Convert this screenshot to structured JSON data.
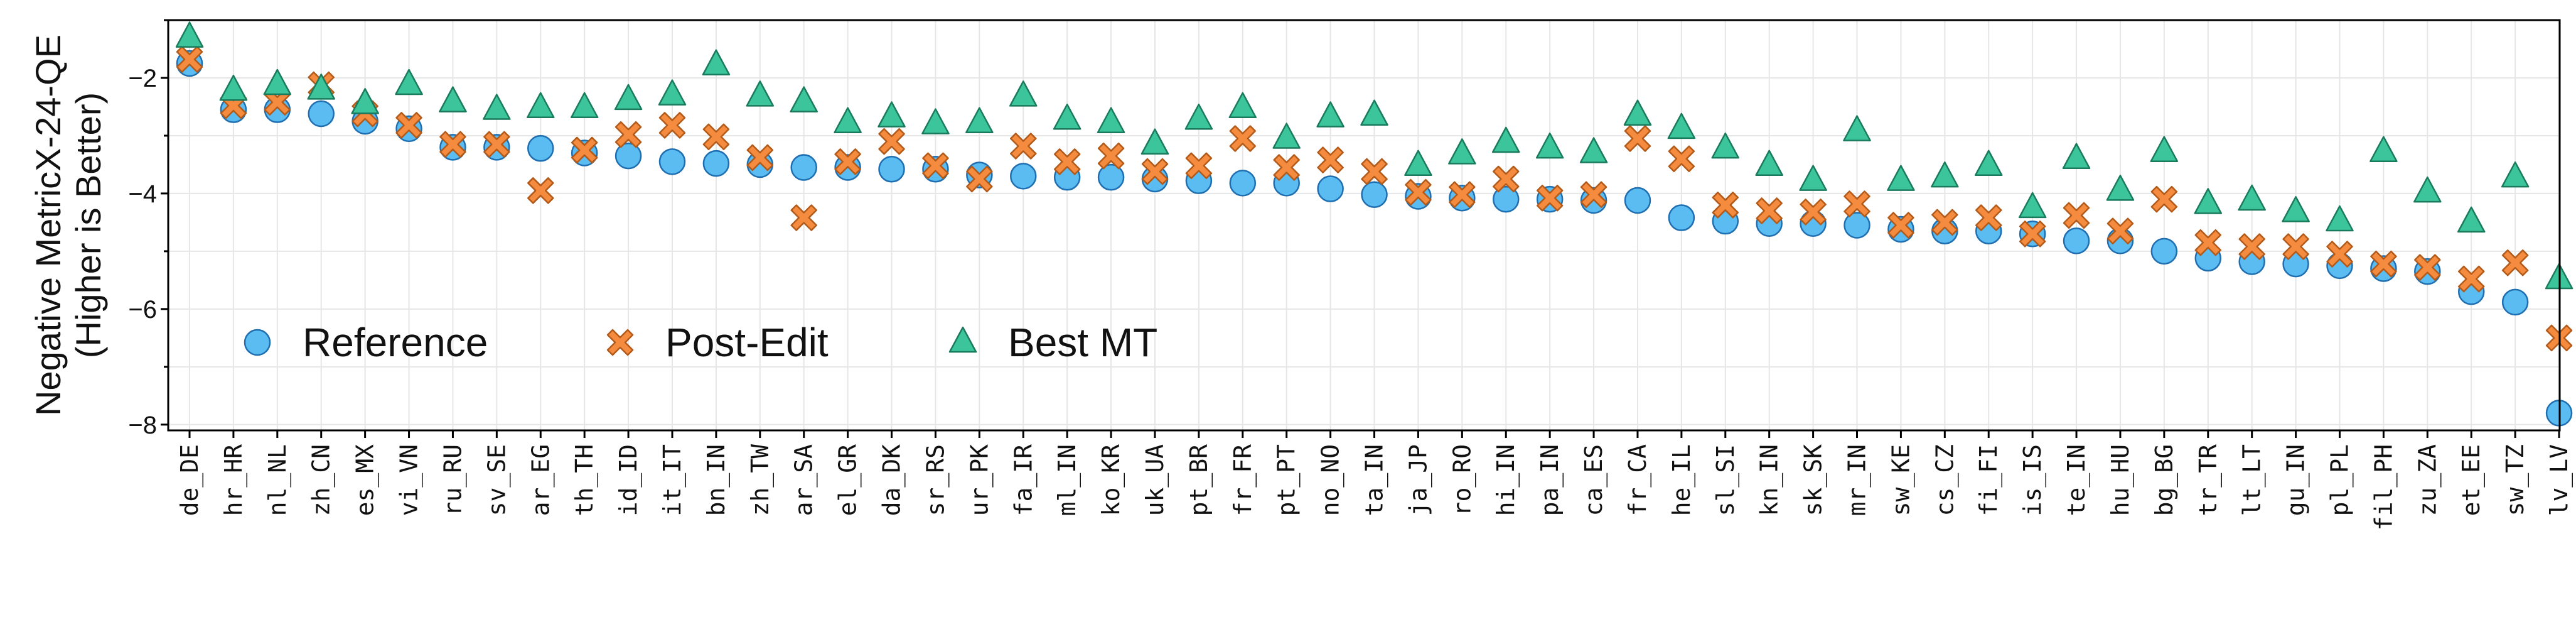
{
  "chart_data": {
    "type": "scatter",
    "ylabel_lines": [
      "Negative MetricX-24-QE",
      "(Higher is Better)"
    ],
    "ylim": [
      -8.1,
      -1.0
    ],
    "yticks": [
      -2,
      -4,
      -6,
      -8
    ],
    "grid": true,
    "legend_position": "lower-left",
    "categories": [
      "de_DE",
      "hr_HR",
      "nl_NL",
      "zh_CN",
      "es_MX",
      "vi_VN",
      "ru_RU",
      "sv_SE",
      "ar_EG",
      "th_TH",
      "id_ID",
      "it_IT",
      "bn_IN",
      "zh_TW",
      "ar_SA",
      "el_GR",
      "da_DK",
      "sr_RS",
      "ur_PK",
      "fa_IR",
      "ml_IN",
      "ko_KR",
      "uk_UA",
      "pt_BR",
      "fr_FR",
      "pt_PT",
      "no_NO",
      "ta_IN",
      "ja_JP",
      "ro_RO",
      "hi_IN",
      "pa_IN",
      "ca_ES",
      "fr_CA",
      "he_IL",
      "sl_SI",
      "kn_IN",
      "sk_SK",
      "mr_IN",
      "sw_KE",
      "cs_CZ",
      "fi_FI",
      "is_IS",
      "te_IN",
      "hu_HU",
      "bg_BG",
      "tr_TR",
      "lt_LT",
      "gu_IN",
      "pl_PL",
      "fil_PH",
      "zu_ZA",
      "et_EE",
      "sw_TZ",
      "lv_LV"
    ],
    "series": [
      {
        "name": "Reference",
        "marker": "circle",
        "color": "#5bbcf2",
        "edge": "#1f6fb0",
        "values": [
          -1.75,
          -2.55,
          -2.55,
          -2.62,
          -2.75,
          -2.88,
          -3.2,
          -3.2,
          -3.22,
          -3.3,
          -3.35,
          -3.45,
          -3.48,
          -3.5,
          -3.55,
          -3.55,
          -3.58,
          -3.58,
          -3.68,
          -3.7,
          -3.72,
          -3.72,
          -3.75,
          -3.78,
          -3.82,
          -3.82,
          -3.92,
          -4.02,
          -4.05,
          -4.08,
          -4.1,
          -4.1,
          -4.12,
          -4.12,
          -4.42,
          -4.48,
          -4.52,
          -4.52,
          -4.55,
          -4.62,
          -4.65,
          -4.65,
          -4.7,
          -4.82,
          -4.82,
          -5.0,
          -5.12,
          -5.18,
          -5.22,
          -5.25,
          -5.3,
          -5.35,
          -5.7,
          -5.88,
          -7.8
        ]
      },
      {
        "name": "Post-Edit",
        "marker": "x",
        "color": "#f48b3e",
        "edge": "#b25a1a",
        "values": [
          -1.68,
          -2.48,
          -2.42,
          -2.12,
          -2.62,
          -2.82,
          -3.15,
          -3.15,
          -3.95,
          -3.25,
          -2.98,
          -2.82,
          -3.02,
          -3.38,
          -4.42,
          -3.45,
          -3.1,
          -3.52,
          -3.75,
          -3.18,
          -3.45,
          -3.35,
          -3.62,
          -3.52,
          -3.05,
          -3.55,
          -3.42,
          -3.62,
          -3.98,
          -4.02,
          -3.75,
          -4.08,
          -4.02,
          -3.05,
          -3.4,
          -4.2,
          -4.3,
          -4.32,
          -4.18,
          -4.55,
          -4.5,
          -4.42,
          -4.7,
          -4.38,
          -4.65,
          -4.1,
          -4.85,
          -4.92,
          -4.92,
          -5.05,
          -5.22,
          -5.28,
          -5.48,
          -5.2,
          -6.5
        ]
      },
      {
        "name": "Best MT",
        "marker": "triangle",
        "color": "#3cc49b",
        "edge": "#1a7a5c",
        "values": [
          -1.3,
          -2.22,
          -2.12,
          -2.2,
          -2.45,
          -2.12,
          -2.42,
          -2.55,
          -2.52,
          -2.52,
          -2.38,
          -2.3,
          -1.78,
          -2.32,
          -2.42,
          -2.78,
          -2.68,
          -2.8,
          -2.78,
          -2.32,
          -2.72,
          -2.78,
          -3.15,
          -2.72,
          -2.52,
          -3.05,
          -2.68,
          -2.65,
          -3.52,
          -3.32,
          -3.12,
          -3.22,
          -3.3,
          -2.65,
          -2.88,
          -3.22,
          -3.52,
          -3.78,
          -2.92,
          -3.78,
          -3.72,
          -3.52,
          -4.25,
          -3.4,
          -3.95,
          -3.28,
          -4.18,
          -4.12,
          -4.32,
          -4.48,
          -3.28,
          -3.98,
          -4.5,
          -3.72,
          -5.48
        ]
      }
    ]
  }
}
